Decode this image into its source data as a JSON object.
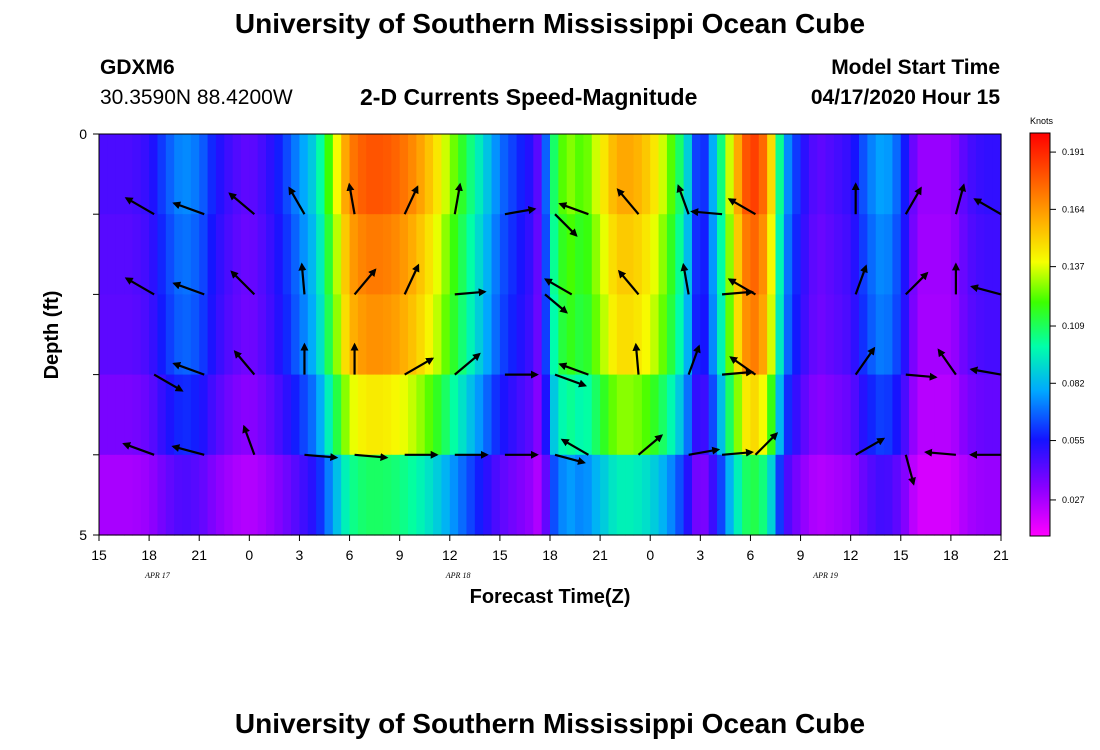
{
  "header": {
    "title_top": "University of Southern Mississippi Ocean Cube",
    "title_bottom": "University of Southern Mississippi Ocean Cube",
    "station_id": "GDXM6",
    "station_coords": "30.3590N 88.4200W",
    "plot_title": "2-D Currents Speed-Magnitude",
    "model_start_label": "Model Start Time",
    "model_start_value": "04/17/2020 Hour 15"
  },
  "chart_data": {
    "type": "heatmap",
    "title": "2-D Currents Speed-Magnitude",
    "xlabel": "Forecast Time(Z)",
    "ylabel": "Depth (ft)",
    "x_tick_labels": [
      "15",
      "18",
      "21",
      "0",
      "3",
      "6",
      "9",
      "12",
      "15",
      "18",
      "21",
      "0",
      "3",
      "6",
      "9",
      "12",
      "15",
      "18",
      "21"
    ],
    "x_range_hours": [
      0,
      54
    ],
    "day_labels": [
      {
        "label": "APR  17",
        "hour": 3.5
      },
      {
        "label": "APR  18",
        "hour": 21.5
      },
      {
        "label": "APR  19",
        "hour": 43.5
      }
    ],
    "y_tick_labels": [
      "0",
      "5"
    ],
    "y_range_ft": [
      0,
      5
    ],
    "colorbar": {
      "unit": "Knots",
      "tick_labels": [
        "0.191",
        "0.164",
        "0.137",
        "0.109",
        "0.082",
        "0.055",
        "0.027"
      ],
      "range": [
        0.01,
        0.2
      ]
    },
    "depth_levels_ft": [
      0.5,
      1.5,
      2.5,
      3.5,
      4.5
    ],
    "time_profile": [
      [
        0,
        0.045
      ],
      [
        2,
        0.045
      ],
      [
        3,
        0.05
      ],
      [
        4,
        0.065
      ],
      [
        5,
        0.075
      ],
      [
        6,
        0.07
      ],
      [
        7,
        0.055
      ],
      [
        8,
        0.045
      ],
      [
        9,
        0.04
      ],
      [
        10,
        0.048
      ],
      [
        11,
        0.06
      ],
      [
        12,
        0.075
      ],
      [
        13,
        0.09
      ],
      [
        14,
        0.13
      ],
      [
        15,
        0.17
      ],
      [
        16,
        0.18
      ],
      [
        17,
        0.18
      ],
      [
        18,
        0.175
      ],
      [
        19,
        0.165
      ],
      [
        20,
        0.15
      ],
      [
        21,
        0.13
      ],
      [
        22,
        0.11
      ],
      [
        23,
        0.09
      ],
      [
        24,
        0.07
      ],
      [
        25,
        0.06
      ],
      [
        26,
        0.05
      ],
      [
        26.5,
        0.035
      ],
      [
        27,
        0.1
      ],
      [
        28,
        0.13
      ],
      [
        29,
        0.12
      ],
      [
        30,
        0.14
      ],
      [
        31,
        0.16
      ],
      [
        32,
        0.16
      ],
      [
        33,
        0.15
      ],
      [
        34,
        0.13
      ],
      [
        35,
        0.1
      ],
      [
        36,
        0.05
      ],
      [
        37,
        0.09
      ],
      [
        38,
        0.15
      ],
      [
        39,
        0.19
      ],
      [
        40,
        0.17
      ],
      [
        41,
        0.08
      ],
      [
        42,
        0.055
      ],
      [
        43,
        0.04
      ],
      [
        45,
        0.05
      ],
      [
        46,
        0.07
      ],
      [
        47,
        0.08
      ],
      [
        48,
        0.065
      ],
      [
        49,
        0.03
      ],
      [
        51,
        0.03
      ],
      [
        52,
        0.045
      ],
      [
        53,
        0.05
      ],
      [
        54,
        0.05
      ]
    ],
    "depth_factor": [
      1.0,
      0.95,
      0.92,
      0.8,
      0.6
    ],
    "vectors": [
      {
        "hour": 1,
        "depth": 0.05,
        "angle": 0,
        "len": 0
      },
      {
        "hour": 3.3,
        "depth": 1.0,
        "angle": 150,
        "len": 32
      },
      {
        "hour": 6.3,
        "depth": 1.0,
        "angle": 160,
        "len": 32
      },
      {
        "hour": 9.3,
        "depth": 1.0,
        "angle": 140,
        "len": 32
      },
      {
        "hour": 12.3,
        "depth": 1.0,
        "angle": 120,
        "len": 30
      },
      {
        "hour": 15.3,
        "depth": 1.0,
        "angle": 100,
        "len": 30
      },
      {
        "hour": 18.3,
        "depth": 1.0,
        "angle": 65,
        "len": 30
      },
      {
        "hour": 21.3,
        "depth": 1.0,
        "angle": 80,
        "len": 30
      },
      {
        "hour": 24.3,
        "depth": 1.0,
        "angle": 10,
        "len": 30
      },
      {
        "hour": 27.3,
        "depth": 1.0,
        "angle": -45,
        "len": 30
      },
      {
        "hour": 29.3,
        "depth": 1.0,
        "angle": 160,
        "len": 30
      },
      {
        "hour": 32.3,
        "depth": 1.0,
        "angle": 130,
        "len": 32
      },
      {
        "hour": 35.3,
        "depth": 1.0,
        "angle": 110,
        "len": 30
      },
      {
        "hour": 37.3,
        "depth": 1.0,
        "angle": 175,
        "len": 30
      },
      {
        "hour": 39.3,
        "depth": 1.0,
        "angle": 150,
        "len": 30
      },
      {
        "hour": 45.3,
        "depth": 1.0,
        "angle": 90,
        "len": 30
      },
      {
        "hour": 48.3,
        "depth": 1.0,
        "angle": 60,
        "len": 30
      },
      {
        "hour": 51.3,
        "depth": 1.0,
        "angle": 75,
        "len": 30
      },
      {
        "hour": 54,
        "depth": 1.0,
        "angle": 150,
        "len": 30
      },
      {
        "hour": 3.3,
        "depth": 2.0,
        "angle": 150,
        "len": 32
      },
      {
        "hour": 6.3,
        "depth": 2.0,
        "angle": 160,
        "len": 32
      },
      {
        "hour": 9.3,
        "depth": 2.0,
        "angle": 135,
        "len": 32
      },
      {
        "hour": 12.3,
        "depth": 2.0,
        "angle": 95,
        "len": 30
      },
      {
        "hour": 15.3,
        "depth": 2.0,
        "angle": 50,
        "len": 32
      },
      {
        "hour": 18.3,
        "depth": 2.0,
        "angle": 65,
        "len": 32
      },
      {
        "hour": 21.3,
        "depth": 2.0,
        "angle": 5,
        "len": 30
      },
      {
        "hour": 26.7,
        "depth": 2.0,
        "angle": -40,
        "len": 28
      },
      {
        "hour": 28.3,
        "depth": 2.0,
        "angle": 150,
        "len": 30
      },
      {
        "hour": 32.3,
        "depth": 2.0,
        "angle": 130,
        "len": 30
      },
      {
        "hour": 35.3,
        "depth": 2.0,
        "angle": 100,
        "len": 30
      },
      {
        "hour": 37.3,
        "depth": 2.0,
        "angle": 5,
        "len": 30
      },
      {
        "hour": 39.3,
        "depth": 2.0,
        "angle": 150,
        "len": 30
      },
      {
        "hour": 45.3,
        "depth": 2.0,
        "angle": 70,
        "len": 30
      },
      {
        "hour": 48.3,
        "depth": 2.0,
        "angle": 45,
        "len": 30
      },
      {
        "hour": 51.3,
        "depth": 2.0,
        "angle": 90,
        "len": 30
      },
      {
        "hour": 54,
        "depth": 2.0,
        "angle": 165,
        "len": 30
      },
      {
        "hour": 3.3,
        "depth": 3.0,
        "angle": -30,
        "len": 32
      },
      {
        "hour": 6.3,
        "depth": 3.0,
        "angle": 160,
        "len": 32
      },
      {
        "hour": 9.3,
        "depth": 3.0,
        "angle": 130,
        "len": 30
      },
      {
        "hour": 12.3,
        "depth": 3.0,
        "angle": 90,
        "len": 30
      },
      {
        "hour": 15.3,
        "depth": 3.0,
        "angle": 90,
        "len": 30
      },
      {
        "hour": 18.3,
        "depth": 3.0,
        "angle": 30,
        "len": 32
      },
      {
        "hour": 21.3,
        "depth": 3.0,
        "angle": 40,
        "len": 32
      },
      {
        "hour": 24.3,
        "depth": 3.0,
        "angle": 0,
        "len": 32
      },
      {
        "hour": 27.3,
        "depth": 3.0,
        "angle": -20,
        "len": 32
      },
      {
        "hour": 29.3,
        "depth": 3.0,
        "angle": 160,
        "len": 30
      },
      {
        "hour": 32.3,
        "depth": 3.0,
        "angle": 95,
        "len": 30
      },
      {
        "hour": 35.3,
        "depth": 3.0,
        "angle": 70,
        "len": 30
      },
      {
        "hour": 37.3,
        "depth": 3.0,
        "angle": 5,
        "len": 30
      },
      {
        "hour": 39.3,
        "depth": 3.0,
        "angle": 145,
        "len": 30
      },
      {
        "hour": 45.3,
        "depth": 3.0,
        "angle": 55,
        "len": 32
      },
      {
        "hour": 48.3,
        "depth": 3.0,
        "angle": -5,
        "len": 30
      },
      {
        "hour": 51.3,
        "depth": 3.0,
        "angle": 125,
        "len": 30
      },
      {
        "hour": 54,
        "depth": 3.0,
        "angle": 170,
        "len": 30
      },
      {
        "hour": 3.3,
        "depth": 4.0,
        "angle": 160,
        "len": 32
      },
      {
        "hour": 6.3,
        "depth": 4.0,
        "angle": 165,
        "len": 32
      },
      {
        "hour": 9.3,
        "depth": 4.0,
        "angle": 110,
        "len": 30
      },
      {
        "hour": 12.3,
        "depth": 4.0,
        "angle": -5,
        "len": 32
      },
      {
        "hour": 15.3,
        "depth": 4.0,
        "angle": -5,
        "len": 32
      },
      {
        "hour": 18.3,
        "depth": 4.0,
        "angle": 0,
        "len": 32
      },
      {
        "hour": 21.3,
        "depth": 4.0,
        "angle": 0,
        "len": 32
      },
      {
        "hour": 24.3,
        "depth": 4.0,
        "angle": 0,
        "len": 32
      },
      {
        "hour": 27.3,
        "depth": 4.0,
        "angle": -15,
        "len": 30
      },
      {
        "hour": 29.3,
        "depth": 4.0,
        "angle": 150,
        "len": 30
      },
      {
        "hour": 32.3,
        "depth": 4.0,
        "angle": 40,
        "len": 30
      },
      {
        "hour": 35.3,
        "depth": 4.0,
        "angle": 10,
        "len": 30
      },
      {
        "hour": 37.3,
        "depth": 4.0,
        "angle": 5,
        "len": 30
      },
      {
        "hour": 39.3,
        "depth": 4.0,
        "angle": 45,
        "len": 30
      },
      {
        "hour": 45.3,
        "depth": 4.0,
        "angle": 30,
        "len": 32
      },
      {
        "hour": 48.3,
        "depth": 4.0,
        "angle": -75,
        "len": 30
      },
      {
        "hour": 51.3,
        "depth": 4.0,
        "angle": 175,
        "len": 30
      },
      {
        "hour": 54,
        "depth": 4.0,
        "angle": 180,
        "len": 30
      }
    ]
  }
}
